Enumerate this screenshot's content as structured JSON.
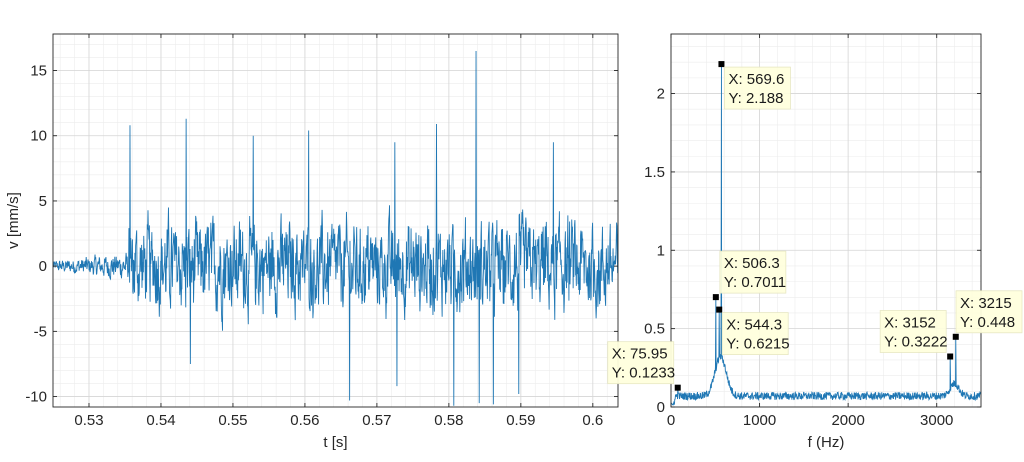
{
  "chart_data": [
    {
      "type": "line",
      "xlabel": "t [s]",
      "ylabel": "v [mm/s]",
      "xlim": [
        0.525,
        0.6035
      ],
      "ylim": [
        -10.8,
        17.8
      ],
      "grid": true,
      "minor_grid": true,
      "line_color": "#1f77b4",
      "xticks": [
        0.53,
        0.54,
        0.55,
        0.56,
        0.57,
        0.58,
        0.59,
        0.6
      ],
      "xtick_labels": [
        "0.53",
        "0.54",
        "0.55",
        "0.56",
        "0.57",
        "0.58",
        "0.59",
        "0.6"
      ],
      "yticks": [
        -10,
        -5,
        0,
        5,
        10,
        15
      ],
      "ytick_labels": [
        "-10",
        "-5",
        "0",
        "5",
        "10",
        "15"
      ],
      "signal": {
        "description": "vibration velocity time series, quiet until ~0.535 s then broadband bursts",
        "quiet_amplitude": 0.6,
        "active_amplitude": 4.5,
        "onset_t": 0.5355,
        "spikes": [
          {
            "t": 0.5357,
            "v": 10.8
          },
          {
            "t": 0.5435,
            "v": 11.3
          },
          {
            "t": 0.5441,
            "v": -7.5
          },
          {
            "t": 0.5528,
            "v": 10.0
          },
          {
            "t": 0.5605,
            "v": 10.4
          },
          {
            "t": 0.5662,
            "v": -10.3
          },
          {
            "t": 0.5725,
            "v": 9.5
          },
          {
            "t": 0.5728,
            "v": -9.2
          },
          {
            "t": 0.5783,
            "v": 10.9
          },
          {
            "t": 0.5807,
            "v": -10.7
          },
          {
            "t": 0.5838,
            "v": 16.5
          },
          {
            "t": 0.5842,
            "v": -10.5
          },
          {
            "t": 0.5862,
            "v": -10.6
          },
          {
            "t": 0.5897,
            "v": -9.8
          },
          {
            "t": 0.5945,
            "v": 9.5
          }
        ]
      }
    },
    {
      "type": "line",
      "xlabel": "f (Hz)",
      "ylabel": "",
      "xlim": [
        0,
        3500
      ],
      "ylim": [
        0,
        2.38
      ],
      "grid": true,
      "minor_grid": true,
      "line_color": "#1f77b4",
      "xticks": [
        0,
        1000,
        2000,
        3000
      ],
      "xtick_labels": [
        "0",
        "1000",
        "2000",
        "3000"
      ],
      "yticks": [
        0,
        0.5,
        1,
        1.5,
        2
      ],
      "ytick_labels": [
        "0",
        "0.5",
        "1",
        "1.5",
        "2"
      ],
      "peaks": [
        {
          "f": 75.95,
          "a": 0.1233
        },
        {
          "f": 506.3,
          "a": 0.7011
        },
        {
          "f": 544.3,
          "a": 0.6215
        },
        {
          "f": 569.6,
          "a": 2.188
        },
        {
          "f": 3152,
          "a": 0.3222
        },
        {
          "f": 3215,
          "a": 0.448
        }
      ],
      "datatips": [
        {
          "x_text": "X: 569.6",
          "y_text": "Y: 2.188",
          "f": 569.6,
          "a": 2.188,
          "placement": "right-below"
        },
        {
          "x_text": "X: 506.3",
          "y_text": "Y: 0.7011",
          "f": 506.3,
          "a": 0.7011,
          "placement": "right-above"
        },
        {
          "x_text": "X: 544.3",
          "y_text": "Y: 0.6215",
          "f": 544.3,
          "a": 0.6215,
          "placement": "right-below"
        },
        {
          "x_text": "X: 75.95",
          "y_text": "Y: 0.1233",
          "f": 75.95,
          "a": 0.1233,
          "placement": "left-above"
        },
        {
          "x_text": "X: 3152",
          "y_text": "Y: 0.3222",
          "f": 3152,
          "a": 0.3222,
          "placement": "left-above"
        },
        {
          "x_text": "X: 3215",
          "y_text": "Y: 0.448",
          "f": 3215,
          "a": 0.448,
          "placement": "right-above"
        }
      ]
    }
  ]
}
